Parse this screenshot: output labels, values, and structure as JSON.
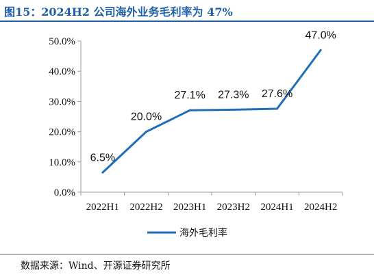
{
  "title": "图15：2024H2 公司海外业务毛利率为 47%",
  "source": "数据来源：Wind、开源证券研究所",
  "chart_data": {
    "type": "line",
    "categories": [
      "2022H1",
      "2022H2",
      "2023H1",
      "2023H2",
      "2024H1",
      "2024H2"
    ],
    "series": [
      {
        "name": "海外毛利率",
        "values": [
          6.5,
          20.0,
          27.1,
          27.3,
          27.6,
          47.0
        ],
        "labels": [
          "6.5%",
          "20.0%",
          "27.1%",
          "27.3%",
          "27.6%",
          "47.0%"
        ],
        "color": "#1f6fb8"
      }
    ],
    "y_ticks": [
      "0.0%",
      "10.0%",
      "20.0%",
      "30.0%",
      "40.0%",
      "50.0%"
    ],
    "ylim": [
      0,
      50
    ],
    "grid": false,
    "legend_position": "bottom"
  }
}
